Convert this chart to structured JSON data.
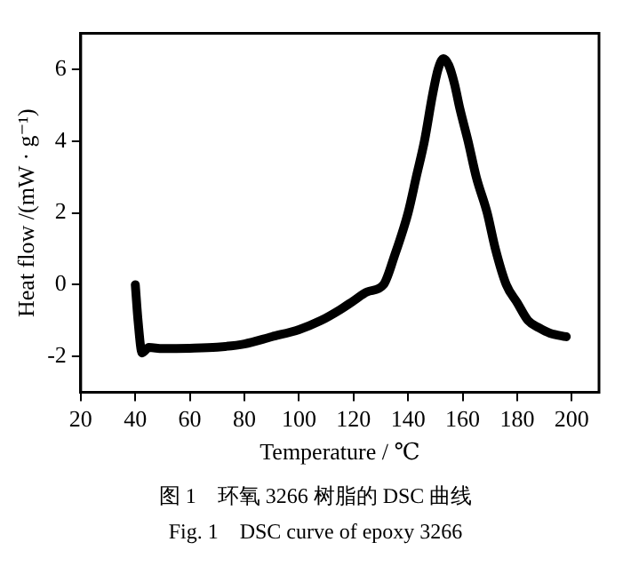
{
  "chart_data": {
    "type": "line",
    "xlabel": "Temperature / ℃",
    "ylabel": "Heat flow /(mW · g⁻¹)",
    "annotations": [
      "图 1　环氧 3266 树脂的 DSC 曲线",
      "Fig. 1　DSC curve of epoxy 3266"
    ],
    "xlim": [
      20,
      210
    ],
    "xticks": [
      20,
      40,
      60,
      80,
      100,
      120,
      140,
      160,
      180,
      200
    ],
    "ylim": [
      -3,
      7
    ],
    "yticks": [
      -2,
      0,
      2,
      4,
      6
    ],
    "grid": false,
    "legend": false,
    "marker": "none",
    "line_style": "solid",
    "series": [
      {
        "color": "#000000",
        "x": [
          40,
          41,
          42.5,
          45,
          50,
          60,
          70,
          80,
          90,
          100,
          108,
          115,
          120,
          125,
          131,
          135,
          140,
          143,
          146,
          149,
          151,
          153,
          155,
          157,
          159,
          162,
          165,
          169,
          172,
          176,
          180,
          184,
          188,
          192,
          198
        ],
        "values": [
          0,
          -1,
          -1.9,
          -1.75,
          -1.78,
          -1.77,
          -1.74,
          -1.65,
          -1.45,
          -1.25,
          -1,
          -0.7,
          -0.45,
          -0.2,
          0,
          0.8,
          2,
          3,
          4,
          5.3,
          6,
          6.3,
          6.1,
          5.6,
          4.9,
          4,
          3,
          2,
          1,
          0,
          -0.5,
          -1,
          -1.2,
          -1.35,
          -1.45
        ]
      }
    ]
  }
}
